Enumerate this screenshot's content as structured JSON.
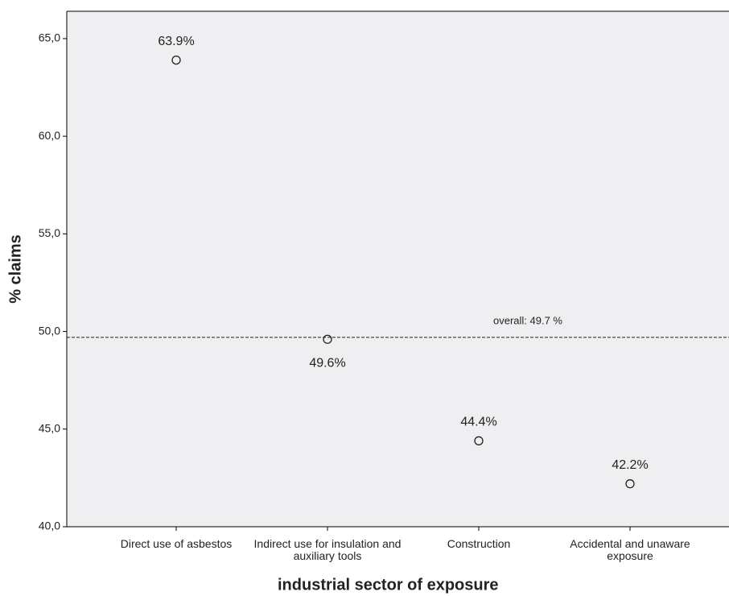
{
  "chart_data": {
    "type": "scatter",
    "x_label": "industrial sector of exposure",
    "y_label": "% claims",
    "categories": [
      "Direct use of asbestos",
      "Indirect use for insulation and auxiliary tools",
      "Construction",
      "Accidental and unaware exposure"
    ],
    "values": [
      63.9,
      49.6,
      44.4,
      42.2
    ],
    "value_labels": [
      "63.9%",
      "49.6%",
      "44.4%",
      "42.2%"
    ],
    "reference_line": {
      "value": 49.7,
      "label": "overall: 49.7 %"
    },
    "ylim": [
      40,
      66.4
    ],
    "yticks": [
      {
        "value": 40,
        "label": "40,0"
      },
      {
        "value": 45,
        "label": "45,0"
      },
      {
        "value": 50,
        "label": "50,0"
      },
      {
        "value": 55,
        "label": "55,0"
      },
      {
        "value": 60,
        "label": "60,0"
      },
      {
        "value": 65,
        "label": "65,0"
      }
    ],
    "plot_background": "#efeff1",
    "color": "#222222"
  }
}
